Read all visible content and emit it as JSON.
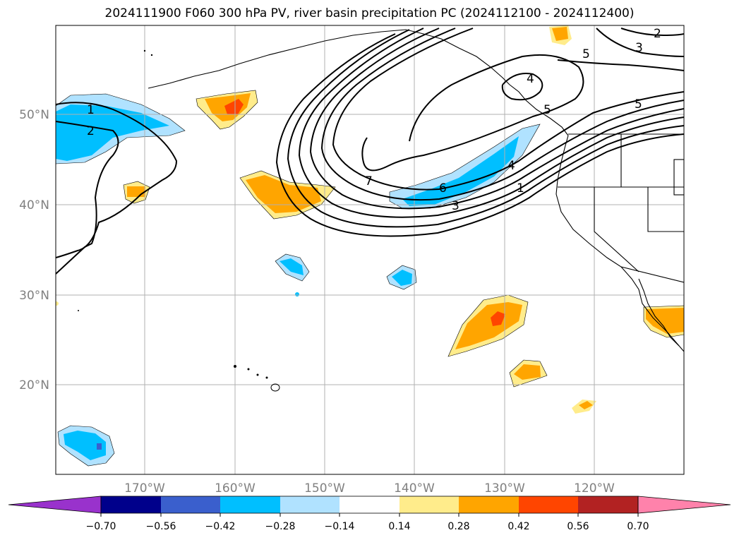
{
  "title": "2024111900 F060 300 hPa PV, river basin precipitation PC (2024112100 - 2024112400)",
  "map": {
    "lat_labels": [
      "50°N",
      "40°N",
      "30°N",
      "20°N"
    ],
    "lon_labels": [
      "170°W",
      "160°W",
      "150°W",
      "140°W",
      "130°W",
      "120°W"
    ],
    "contour_labels": [
      "1",
      "2",
      "2",
      "3",
      "5",
      "4",
      "5",
      "5",
      "7",
      "6",
      "3",
      "4",
      "1"
    ],
    "colors": {
      "land_outline": "#000000",
      "grid": "#b0b0b0",
      "contour": "#000000",
      "tick_label": "#808080"
    }
  },
  "colorbar": {
    "tick_labels": [
      "−0.70",
      "−0.56",
      "−0.42",
      "−0.28",
      "−0.14",
      "0.14",
      "0.28",
      "0.42",
      "0.56",
      "0.70"
    ],
    "colors": [
      "#9932cc",
      "#00008b",
      "#3a5fcd",
      "#00bfff",
      "#b0e2ff",
      "#ffffff",
      "#ffec8b",
      "#ffa500",
      "#ff4500",
      "#b22222",
      "#ff82ab"
    ]
  }
}
